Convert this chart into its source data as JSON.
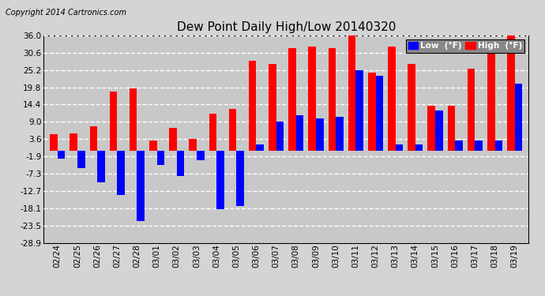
{
  "title": "Dew Point Daily High/Low 20140320",
  "copyright": "Copyright 2014 Cartronics.com",
  "dates": [
    "02/24",
    "02/25",
    "02/26",
    "02/27",
    "02/28",
    "03/01",
    "03/02",
    "03/03",
    "03/04",
    "03/05",
    "03/06",
    "03/07",
    "03/08",
    "03/09",
    "03/10",
    "03/11",
    "03/12",
    "03/13",
    "03/14",
    "03/15",
    "03/16",
    "03/17",
    "03/18",
    "03/19"
  ],
  "high": [
    5.0,
    5.4,
    7.5,
    18.5,
    19.5,
    3.0,
    7.0,
    3.6,
    11.5,
    13.0,
    28.0,
    27.0,
    32.0,
    32.5,
    32.0,
    36.0,
    24.5,
    32.5,
    27.0,
    14.0,
    14.0,
    25.5,
    32.5,
    36.0
  ],
  "low": [
    -2.5,
    -5.5,
    -10.0,
    -14.0,
    -22.0,
    -4.5,
    -8.0,
    -3.0,
    -18.5,
    -17.5,
    2.0,
    9.0,
    11.0,
    10.0,
    10.5,
    25.0,
    23.5,
    1.9,
    2.0,
    12.5,
    3.0,
    3.0,
    3.0,
    21.0
  ],
  "ylim": [
    -28.9,
    36.0
  ],
  "yticks": [
    36.0,
    30.6,
    25.2,
    19.8,
    14.4,
    9.0,
    3.6,
    -1.9,
    -7.3,
    -12.7,
    -18.1,
    -23.5,
    -28.9
  ],
  "high_color": "#ff0000",
  "low_color": "#0000ff",
  "bg_color": "#d4d4d4",
  "plot_bg_color": "#c8c8c8",
  "grid_color": "#ffffff",
  "bar_width": 0.38
}
